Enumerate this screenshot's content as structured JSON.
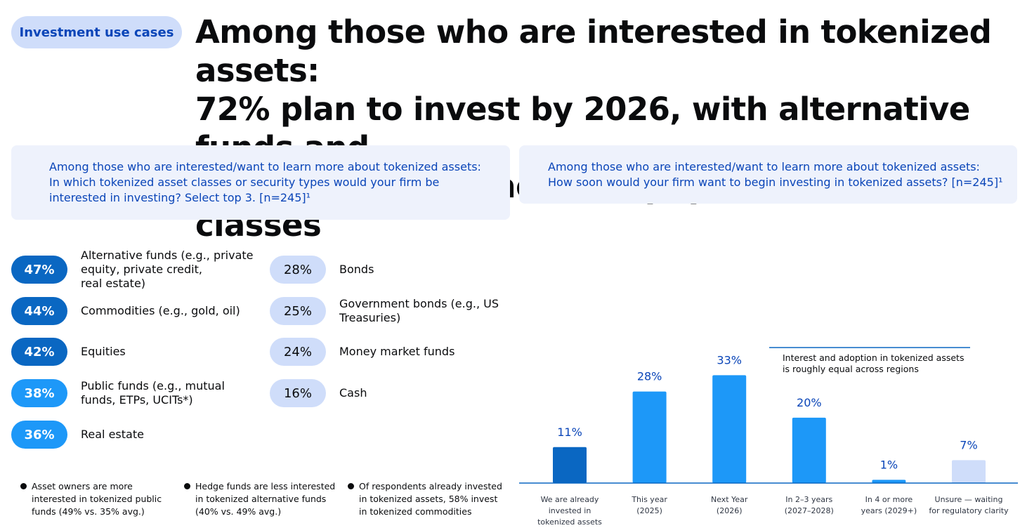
{
  "tag": "Investment use cases",
  "headline": {
    "line1": "Among those who are interested in tokenized assets:",
    "line2": "72% plan to invest by 2026, with alternative funds and",
    "line3": "commodities as the most popular asset classes"
  },
  "left_question": {
    "line1": "Among those who are interested/want to learn more about tokenized assets:",
    "line2": "In which tokenized asset classes or security types would your firm  be",
    "line3": "interested in investing? Select top 3. [n=245]¹"
  },
  "right_question": {
    "line1": "Among those who are interested/want to learn more about tokenized assets:",
    "line2": "How soon would your firm want to begin investing in tokenized assets?  [n=245]¹"
  },
  "asset_classes": [
    {
      "pct": "47%",
      "line1": "Alternative funds (e.g., private",
      "line2": "equity, private credit,",
      "line3": "real estate)",
      "shade": "dark",
      "color": "#0a67c2"
    },
    {
      "pct": "44%",
      "line1": "Commodities (e.g., gold, oil)",
      "line2": "",
      "line3": "",
      "shade": "dark",
      "color": "#0a67c2"
    },
    {
      "pct": "42%",
      "line1": "Equities",
      "line2": "",
      "line3": "",
      "shade": "dark",
      "color": "#0a67c2"
    },
    {
      "pct": "38%",
      "line1": "Public funds (e.g., mutual",
      "line2": "funds, ETPs, UCITs*)",
      "line3": "",
      "shade": "mid",
      "color": "#1d98f8"
    },
    {
      "pct": "36%",
      "line1": "Real estate",
      "line2": "",
      "line3": "",
      "shade": "mid",
      "color": "#1d98f8"
    },
    {
      "pct": "28%",
      "line1": "Bonds",
      "line2": "",
      "line3": "",
      "shade": "light",
      "color": "#cfddfa"
    },
    {
      "pct": "25%",
      "line1": "Government bonds (e.g., US",
      "line2": "Treasuries)",
      "line3": "",
      "shade": "light",
      "color": "#cfddfa"
    },
    {
      "pct": "24%",
      "line1": "Money market funds",
      "line2": "",
      "line3": "",
      "shade": "light",
      "color": "#cfddfa"
    },
    {
      "pct": "16%",
      "line1": "Cash",
      "line2": "",
      "line3": "",
      "shade": "light",
      "color": "#cfddfa"
    }
  ],
  "notes": [
    {
      "line1": "Asset owners are more",
      "line2": "interested in tokenized public",
      "line3": "funds (49% vs. 35% avg.)"
    },
    {
      "line1": "Hedge funds are less interested",
      "line2": "in tokenized alternative funds",
      "line3": "(40% vs. 49% avg.)"
    },
    {
      "line1": "Of respondents already invested",
      "line2": "in tokenized assets, 58% invest",
      "line3": "in tokenized commodities"
    }
  ],
  "chart_data": {
    "type": "bar",
    "title": "",
    "xlabel": "",
    "ylabel": "",
    "ylim": [
      0,
      35
    ],
    "grid": false,
    "categories": [
      [
        "We are already",
        "invested in",
        "tokenized assets"
      ],
      [
        "This year",
        "(2025)"
      ],
      [
        "Next Year",
        "(2026)"
      ],
      [
        "In 2–3 years",
        "(2027–2028)"
      ],
      [
        "In 4 or more",
        "years (2029+)"
      ],
      [
        "Unsure — waiting",
        "for regulatory clarity"
      ]
    ],
    "values": [
      11,
      28,
      33,
      20,
      1,
      7
    ],
    "value_labels": [
      "11%",
      "28%",
      "33%",
      "20%",
      "1%",
      "7%"
    ],
    "colors": [
      "#0a67c2",
      "#1d98f8",
      "#1d98f8",
      "#1d98f8",
      "#1d98f8",
      "#cfddfa"
    ],
    "annotation": {
      "line1": "Interest and adoption in tokenized assets",
      "line2": "is roughly equal across regions",
      "color": "#0a67c2"
    }
  }
}
